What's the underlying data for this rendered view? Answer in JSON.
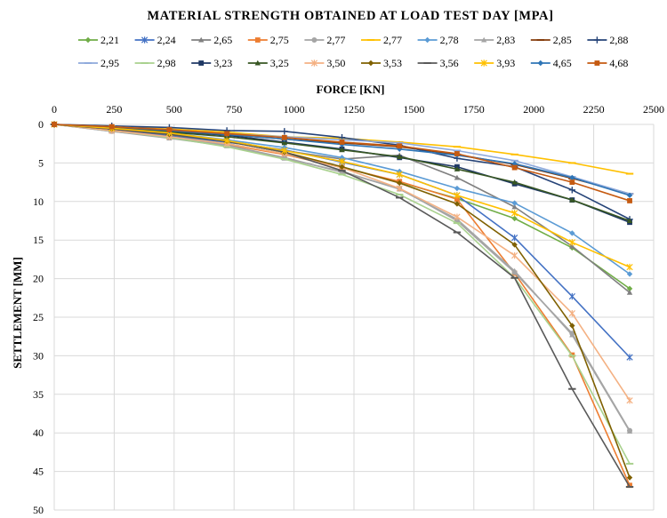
{
  "chart_data": {
    "type": "line",
    "title": "MATERIAL STRENGTH OBTAINED AT LOAD TEST DAY [MPA]",
    "xlabel": "FORCE [KN]",
    "ylabel": "SETTLEMENT [MM]",
    "xlim": [
      0,
      2500
    ],
    "ylim": [
      0,
      50
    ],
    "y_inverted": true,
    "x_axis_position": "top",
    "x_ticks": [
      "0",
      "250",
      "500",
      "750",
      "1000",
      "1250",
      "1500",
      "1750",
      "2000",
      "2250",
      "2500"
    ],
    "y_ticks": [
      "0",
      "5",
      "10",
      "15",
      "20",
      "25",
      "30",
      "35",
      "40",
      "45",
      "50"
    ],
    "grid": "both",
    "legend_position": "top",
    "x": [
      0,
      240,
      480,
      720,
      960,
      1200,
      1440,
      1680,
      1920,
      2160,
      2400
    ],
    "series": [
      {
        "name": "2,21",
        "color": "#70AD47",
        "marker": "diamond",
        "values": [
          0,
          0.8,
          1.6,
          2.5,
          3.8,
          5.5,
          7.5,
          9.6,
          12.2,
          16.0,
          21.3
        ]
      },
      {
        "name": "2,24",
        "color": "#4472C4",
        "marker": "star",
        "values": [
          0,
          0.7,
          1.5,
          2.3,
          3.3,
          4.9,
          6.5,
          9.2,
          14.7,
          22.3,
          30.2
        ]
      },
      {
        "name": "2,65",
        "color": "#808080",
        "marker": "triangle",
        "values": [
          0,
          0.5,
          1.2,
          2.1,
          3.4,
          4.5,
          4.0,
          6.9,
          10.7,
          15.8,
          21.8
        ]
      },
      {
        "name": "2,75",
        "color": "#ED7D31",
        "marker": "square",
        "values": [
          0,
          0.8,
          1.6,
          2.6,
          3.9,
          5.6,
          7.4,
          9.7,
          19.3,
          29.9,
          46.8
        ]
      },
      {
        "name": "2,77",
        "color": "#A5A5A5",
        "marker": "circle",
        "values": [
          0,
          0.9,
          1.7,
          2.7,
          4.3,
          6.2,
          8.3,
          12.5,
          19.2,
          27.1,
          39.7
        ]
      },
      {
        "name": "2,77",
        "color": "#FFC000",
        "marker": "dash",
        "values": [
          0,
          0.3,
          0.6,
          1.0,
          1.6,
          1.8,
          2.3,
          2.9,
          3.9,
          5.0,
          6.4
        ]
      },
      {
        "name": "2,78",
        "color": "#5B9BD5",
        "marker": "diamond",
        "values": [
          0,
          0.4,
          1.1,
          2.0,
          3.0,
          4.3,
          6.1,
          8.3,
          10.2,
          14.1,
          19.4
        ]
      },
      {
        "name": "2,83",
        "color": "#A5A5A5",
        "marker": "triangle",
        "values": [
          0,
          0.9,
          1.8,
          2.8,
          4.4,
          6.1,
          8.4,
          12.3,
          19.0,
          27.3,
          39.8
        ]
      },
      {
        "name": "2,85",
        "color": "#843C0C",
        "marker": "dash",
        "values": [
          0,
          0.3,
          0.7,
          1.3,
          1.9,
          2.4,
          2.9,
          3.9,
          5.2,
          7.0,
          9.0
        ]
      },
      {
        "name": "2,88",
        "color": "#264478",
        "marker": "plus",
        "values": [
          0,
          0.2,
          0.4,
          0.8,
          0.9,
          1.7,
          2.7,
          4.4,
          5.5,
          8.5,
          12.3
        ]
      },
      {
        "name": "2,95",
        "color": "#8FAADC",
        "marker": "dash",
        "values": [
          0,
          0.3,
          0.7,
          1.2,
          1.6,
          2.0,
          2.4,
          3.4,
          4.7,
          6.8,
          9.0
        ]
      },
      {
        "name": "2,98",
        "color": "#A9D18E",
        "marker": "dash",
        "values": [
          0,
          0.8,
          1.7,
          2.9,
          4.5,
          6.5,
          9.1,
          12.8,
          19.9,
          30.0,
          44.0
        ]
      },
      {
        "name": "3,23",
        "color": "#1F3864",
        "marker": "square",
        "values": [
          0,
          0.4,
          0.9,
          1.4,
          2.3,
          3.2,
          4.3,
          5.5,
          7.7,
          9.8,
          12.7
        ]
      },
      {
        "name": "3,25",
        "color": "#375623",
        "marker": "triangle",
        "values": [
          0,
          0.5,
          1.0,
          1.6,
          2.4,
          3.3,
          4.2,
          5.8,
          7.5,
          9.8,
          12.5
        ]
      },
      {
        "name": "3,50",
        "color": "#F4B183",
        "marker": "star",
        "values": [
          0,
          0.8,
          1.6,
          2.5,
          3.8,
          5.6,
          8.3,
          12.0,
          17.0,
          24.5,
          35.8
        ]
      },
      {
        "name": "3,53",
        "color": "#7F6000",
        "marker": "diamond",
        "values": [
          0,
          0.6,
          1.3,
          2.2,
          3.6,
          5.5,
          7.6,
          10.3,
          15.6,
          26.1,
          45.8
        ]
      },
      {
        "name": "3,56",
        "color": "#595959",
        "marker": "dash",
        "values": [
          0,
          0.6,
          1.3,
          2.2,
          3.6,
          6.0,
          9.5,
          14.0,
          19.9,
          34.3,
          47.0
        ]
      },
      {
        "name": "3,93",
        "color": "#FFC000",
        "marker": "star",
        "values": [
          0,
          0.5,
          1.1,
          2.1,
          3.4,
          4.8,
          6.5,
          9.2,
          11.5,
          15.3,
          18.5
        ]
      },
      {
        "name": "4,65",
        "color": "#2E75B6",
        "marker": "diamond",
        "values": [
          0,
          0.3,
          0.8,
          1.3,
          1.9,
          2.6,
          3.2,
          4.0,
          5.1,
          6.9,
          9.2
        ]
      },
      {
        "name": "4,68",
        "color": "#C55A11",
        "marker": "square",
        "values": [
          0,
          0.3,
          0.7,
          1.2,
          1.7,
          2.3,
          2.8,
          3.8,
          5.6,
          7.5,
          9.9
        ]
      }
    ]
  }
}
